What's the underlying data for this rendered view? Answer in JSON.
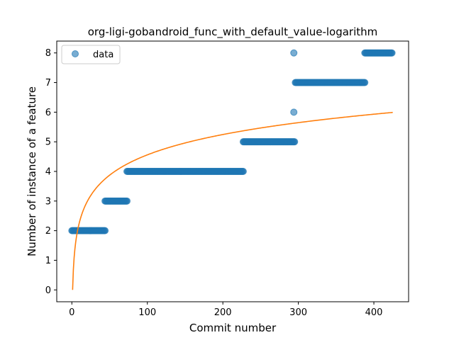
{
  "chart_data": {
    "type": "scatter",
    "title": "org-ligi-gobandroid_func_with_default_value-logarithm",
    "xlabel": "Commit number",
    "ylabel": "Number of instance of a feature",
    "xlim": [
      -20,
      446
    ],
    "ylim": [
      -0.4,
      8.4
    ],
    "xticks": [
      0,
      100,
      200,
      300,
      400
    ],
    "yticks": [
      0,
      1,
      2,
      3,
      4,
      5,
      6,
      7,
      8
    ],
    "grid": false,
    "legend": {
      "placement": "top-left",
      "entries": [
        "data"
      ]
    },
    "colors": {
      "points": "#1f77b4",
      "fit": "#ff7f0e"
    },
    "series": [
      {
        "name": "data",
        "kind": "scatter",
        "segments": [
          {
            "x_start": 0,
            "x_end": 44,
            "y": 2
          },
          {
            "x_start": 44,
            "x_end": 73,
            "y": 3
          },
          {
            "x_start": 73,
            "x_end": 227,
            "y": 4
          },
          {
            "x_start": 227,
            "x_end": 295,
            "y": 5
          },
          {
            "x_start": 296,
            "x_end": 388,
            "y": 7
          },
          {
            "x_start": 388,
            "x_end": 424,
            "y": 8
          }
        ],
        "extra_points": [
          {
            "x": 294,
            "y": 6
          },
          {
            "x": 294,
            "y": 8
          }
        ]
      },
      {
        "kind": "line",
        "model": "logarithmic",
        "a": 0.99,
        "b": 0,
        "x_start": 1,
        "x_end": 425
      }
    ]
  }
}
